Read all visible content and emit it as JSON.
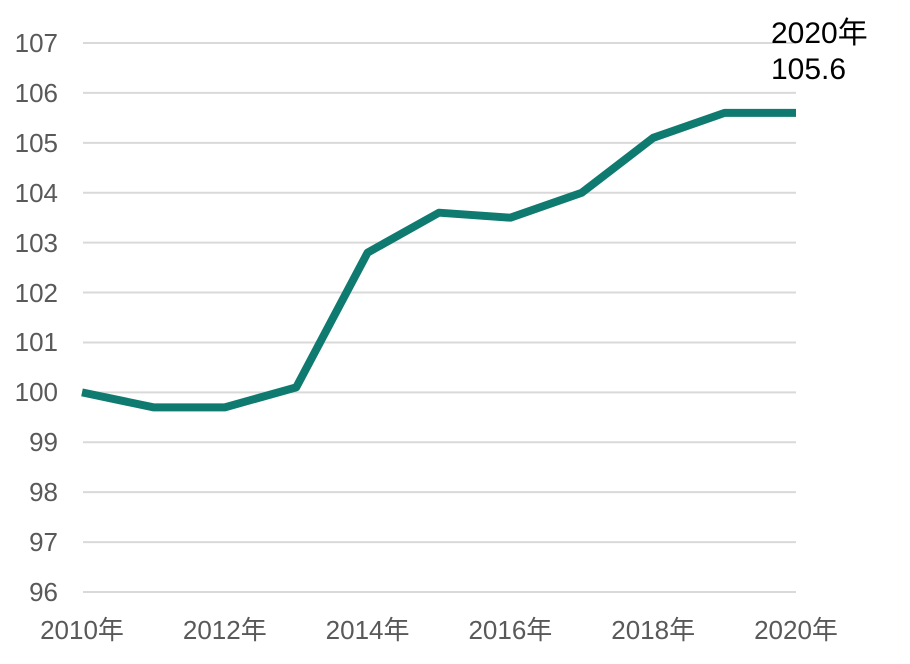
{
  "chart_data": {
    "type": "line",
    "x": [
      2010,
      2011,
      2012,
      2013,
      2014,
      2015,
      2016,
      2017,
      2018,
      2019,
      2020
    ],
    "series": [
      {
        "values": [
          100.0,
          99.7,
          99.7,
          100.1,
          102.8,
          103.6,
          103.5,
          104.0,
          105.1,
          105.6,
          105.6
        ],
        "color": "#0F7A6F"
      }
    ],
    "title": "",
    "xlabel": "",
    "ylabel": "",
    "ylim": [
      96,
      107
    ],
    "ytick_step": 1,
    "yticks": [
      "96",
      "97",
      "98",
      "99",
      "100",
      "101",
      "102",
      "103",
      "104",
      "105",
      "106",
      "107"
    ],
    "xticks": [
      "2010年",
      "2012年",
      "2014年",
      "2016年",
      "2018年",
      "2020年"
    ],
    "grid": true,
    "grid_color": "#D9D9D9",
    "axis_label_color": "#595959",
    "background_color": "#FFFFFF",
    "legend_position": "none",
    "annotation": {
      "year": "2020年",
      "value": "105.6",
      "color": "#000000"
    }
  }
}
